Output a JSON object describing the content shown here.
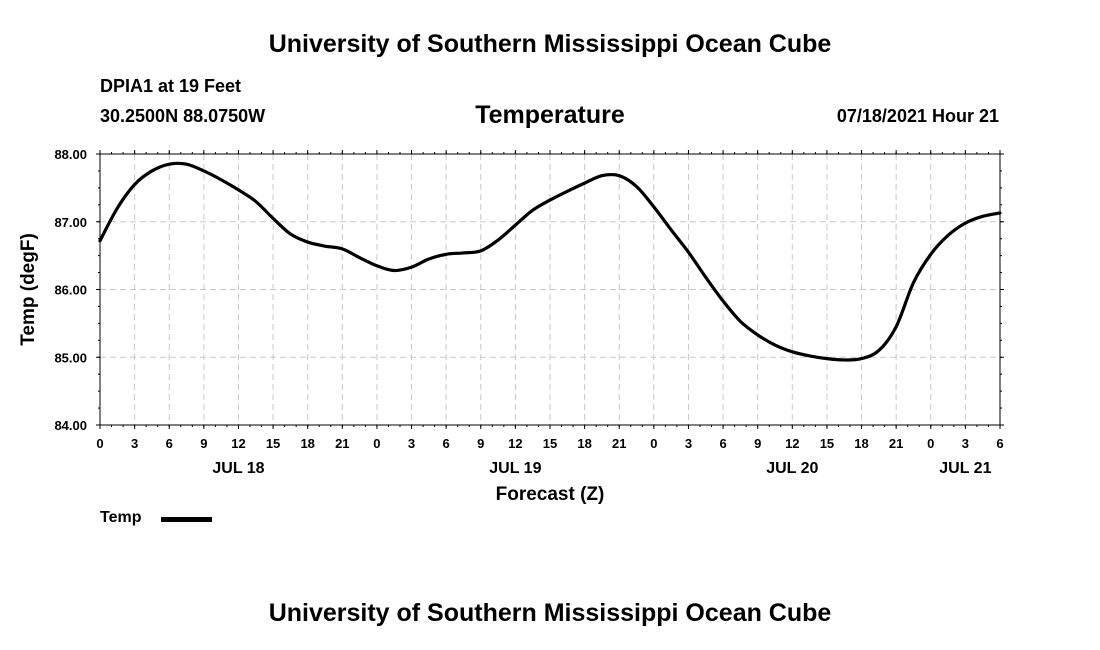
{
  "header": {
    "title": "University of Southern Mississippi Ocean Cube",
    "station": "DPIA1 at 19 Feet",
    "coordinates": "30.2500N  88.0750W",
    "variable": "Temperature",
    "datetime": "07/18/2021 Hour 21"
  },
  "footer": {
    "title": "University of Southern Mississippi Ocean Cube"
  },
  "legend": {
    "label": "Temp",
    "color": "#000000"
  },
  "chart_data": {
    "type": "line",
    "title": "Temperature",
    "xlabel": "Forecast (Z)",
    "ylabel": "Temp (degF)",
    "ylim": [
      84,
      88
    ],
    "y_ticks": [
      "84.00",
      "85.00",
      "86.00",
      "87.00",
      "88.00"
    ],
    "x_range_hours": [
      0,
      78
    ],
    "x_tick_hours": [
      0,
      3,
      6,
      9,
      12,
      15,
      18,
      21,
      24,
      27,
      30,
      33,
      36,
      39,
      42,
      45,
      48,
      51,
      54,
      57,
      60,
      63,
      66,
      69,
      72,
      75,
      78
    ],
    "x_tick_labels": [
      "0",
      "3",
      "6",
      "9",
      "12",
      "15",
      "18",
      "21",
      "0",
      "3",
      "6",
      "9",
      "12",
      "15",
      "18",
      "21",
      "0",
      "3",
      "6",
      "9",
      "12",
      "15",
      "18",
      "21",
      "0",
      "3",
      "6"
    ],
    "date_labels": [
      {
        "hour": 12,
        "label": "JUL 18"
      },
      {
        "hour": 36,
        "label": "JUL 19"
      },
      {
        "hour": 60,
        "label": "JUL 20"
      },
      {
        "hour": 75,
        "label": "JUL 21"
      }
    ],
    "grid": true,
    "series": [
      {
        "name": "Temp",
        "color": "#000000",
        "x": [
          0,
          1.5,
          3,
          4.5,
          6,
          7.5,
          9,
          10.5,
          12,
          13.5,
          15,
          16.5,
          18,
          19.5,
          21,
          22.5,
          24,
          25.5,
          27,
          28.5,
          30,
          31.5,
          33,
          34.5,
          36,
          37.5,
          39,
          40.5,
          42,
          43.5,
          45,
          46.5,
          48,
          49.5,
          51,
          52.5,
          54,
          55.5,
          57,
          58.5,
          60,
          61.5,
          63,
          64.5,
          66,
          67.5,
          69,
          70.5,
          72,
          73.5,
          75,
          76.5,
          78
        ],
        "values": [
          86.72,
          87.2,
          87.55,
          87.75,
          87.85,
          87.85,
          87.75,
          87.62,
          87.47,
          87.3,
          87.05,
          86.82,
          86.7,
          86.64,
          86.6,
          86.47,
          86.35,
          86.28,
          86.33,
          86.45,
          86.52,
          86.54,
          86.57,
          86.73,
          86.95,
          87.17,
          87.32,
          87.45,
          87.57,
          87.68,
          87.68,
          87.52,
          87.22,
          86.88,
          86.55,
          86.18,
          85.83,
          85.53,
          85.33,
          85.18,
          85.08,
          85.02,
          84.98,
          84.96,
          84.98,
          85.1,
          85.45,
          86.1,
          86.52,
          86.8,
          86.98,
          87.08,
          87.13
        ]
      }
    ]
  }
}
